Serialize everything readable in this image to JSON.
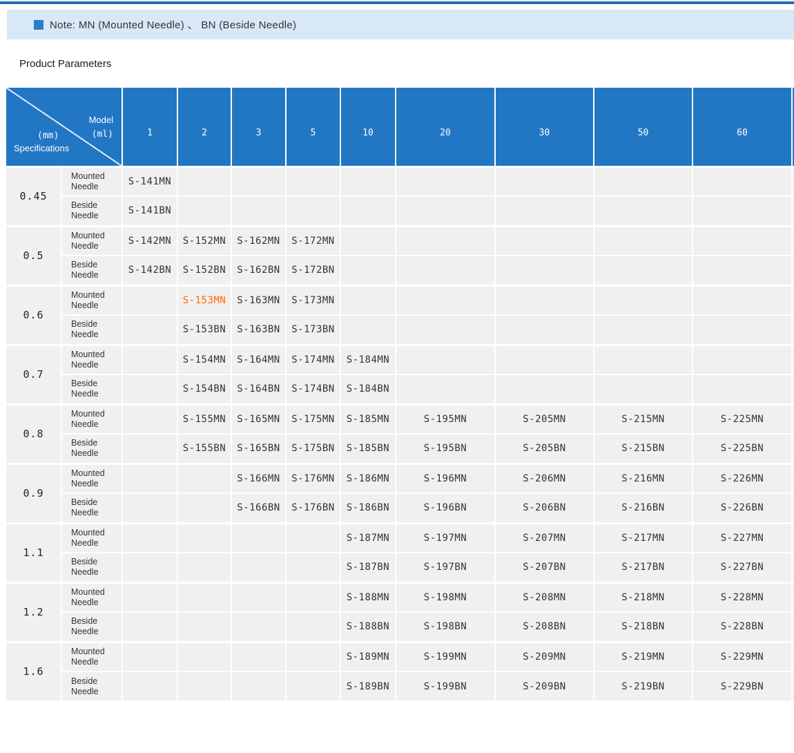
{
  "colors": {
    "top_rule": "#1e6fb8",
    "note_band_bg": "#d9e8f6",
    "note_icon": "#2b80c4",
    "header_bg": "#2277c4",
    "cell_bg": "#f0f0f0",
    "text": "#333333",
    "highlight": "#ff6600"
  },
  "note": {
    "icon": "blue-square-bullet-icon",
    "text": "Note: MN (Mounted Needle) 、 BN (Beside Needle)"
  },
  "section_title": "Product Parameters",
  "table": {
    "header": {
      "corner": {
        "model_line1": "Model",
        "model_line2": "(ml)",
        "spec_line1": "(mm)",
        "spec_line2": "Specifications"
      },
      "columns": [
        "1",
        "2",
        "3",
        "5",
        "10",
        "20",
        "30",
        "50",
        "60"
      ]
    },
    "row_labels": {
      "mn": "Mounted Needle",
      "bn": "Beside Needle"
    },
    "highlight": {
      "model": "S-153MN",
      "color": "#ff6600"
    },
    "groups": [
      {
        "spec": "0.45",
        "mn": [
          "S-141MN",
          "",
          "",
          "",
          "",
          "",
          "",
          "",
          ""
        ],
        "bn": [
          "S-141BN",
          "",
          "",
          "",
          "",
          "",
          "",
          "",
          ""
        ]
      },
      {
        "spec": "0.5",
        "mn": [
          "S-142MN",
          "S-152MN",
          "S-162MN",
          "S-172MN",
          "",
          "",
          "",
          "",
          ""
        ],
        "bn": [
          "S-142BN",
          "S-152BN",
          "S-162BN",
          "S-172BN",
          "",
          "",
          "",
          "",
          ""
        ]
      },
      {
        "spec": "0.6",
        "mn": [
          "",
          "S-153MN",
          "S-163MN",
          "S-173MN",
          "",
          "",
          "",
          "",
          ""
        ],
        "bn": [
          "",
          "S-153BN",
          "S-163BN",
          "S-173BN",
          "",
          "",
          "",
          "",
          ""
        ]
      },
      {
        "spec": "0.7",
        "mn": [
          "",
          "S-154MN",
          "S-164MN",
          "S-174MN",
          "S-184MN",
          "",
          "",
          "",
          ""
        ],
        "bn": [
          "",
          "S-154BN",
          "S-164BN",
          "S-174BN",
          "S-184BN",
          "",
          "",
          "",
          ""
        ]
      },
      {
        "spec": "0.8",
        "mn": [
          "",
          "S-155MN",
          "S-165MN",
          "S-175MN",
          "S-185MN",
          "S-195MN",
          "S-205MN",
          "S-215MN",
          "S-225MN"
        ],
        "bn": [
          "",
          "S-155BN",
          "S-165BN",
          "S-175BN",
          "S-185BN",
          "S-195BN",
          "S-205BN",
          "S-215BN",
          "S-225BN"
        ]
      },
      {
        "spec": "0.9",
        "mn": [
          "",
          "",
          "S-166MN",
          "S-176MN",
          "S-186MN",
          "S-196MN",
          "S-206MN",
          "S-216MN",
          "S-226MN"
        ],
        "bn": [
          "",
          "",
          "S-166BN",
          "S-176BN",
          "S-186BN",
          "S-196BN",
          "S-206BN",
          "S-216BN",
          "S-226BN"
        ]
      },
      {
        "spec": "1.1",
        "mn": [
          "",
          "",
          "",
          "",
          "S-187MN",
          "S-197MN",
          "S-207MN",
          "S-217MN",
          "S-227MN"
        ],
        "bn": [
          "",
          "",
          "",
          "",
          "S-187BN",
          "S-197BN",
          "S-207BN",
          "S-217BN",
          "S-227BN"
        ]
      },
      {
        "spec": "1.2",
        "mn": [
          "",
          "",
          "",
          "",
          "S-188MN",
          "S-198MN",
          "S-208MN",
          "S-218MN",
          "S-228MN"
        ],
        "bn": [
          "",
          "",
          "",
          "",
          "S-188BN",
          "S-198BN",
          "S-208BN",
          "S-218BN",
          "S-228BN"
        ]
      },
      {
        "spec": "1.6",
        "mn": [
          "",
          "",
          "",
          "",
          "S-189MN",
          "S-199MN",
          "S-209MN",
          "S-219MN",
          "S-229MN"
        ],
        "bn": [
          "",
          "",
          "",
          "",
          "S-189BN",
          "S-199BN",
          "S-209BN",
          "S-219BN",
          "S-229BN"
        ]
      }
    ]
  }
}
